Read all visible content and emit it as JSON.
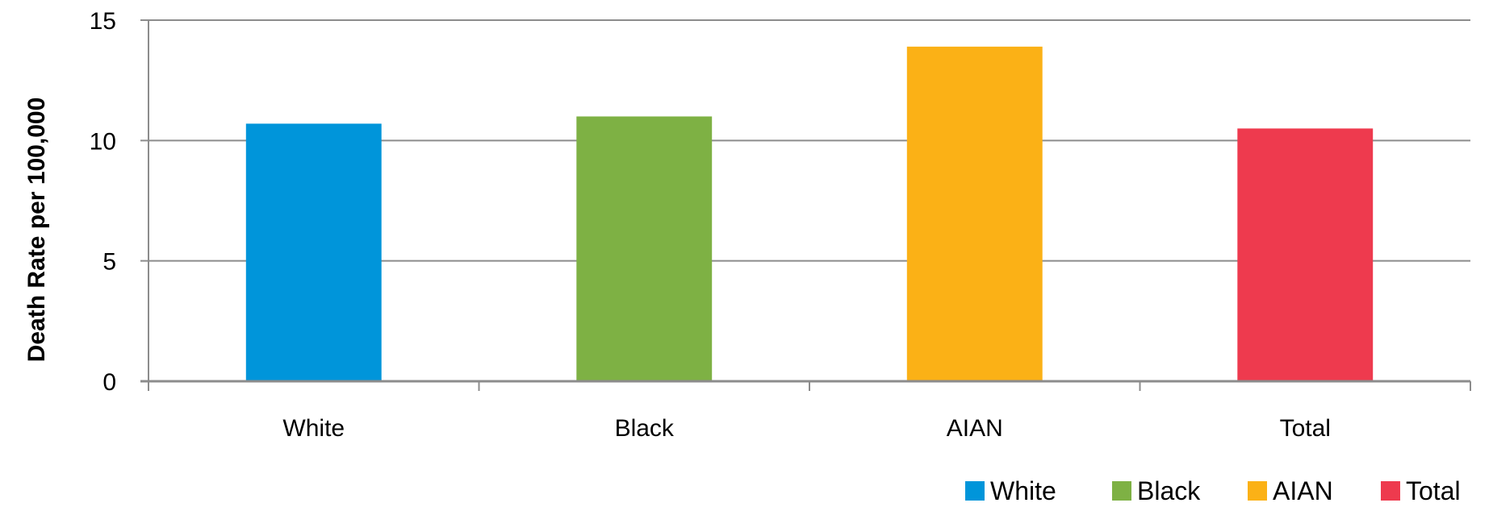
{
  "chart_data": {
    "type": "bar",
    "title": "",
    "xlabel": "",
    "ylabel": "Death Rate per 100,000",
    "ylim": [
      0,
      15
    ],
    "yticks": [
      0,
      5,
      10,
      15
    ],
    "categories": [
      "White",
      "Black",
      "AIAN",
      "Total"
    ],
    "values": [
      10.7,
      11.0,
      13.9,
      10.5
    ],
    "colors": [
      "#0095DA",
      "#7EB144",
      "#FBB116",
      "#EE3A4E"
    ],
    "grid": true,
    "legend": {
      "position": "bottom-right",
      "entries": [
        "White",
        "Black",
        "AIAN",
        "Total"
      ]
    }
  }
}
